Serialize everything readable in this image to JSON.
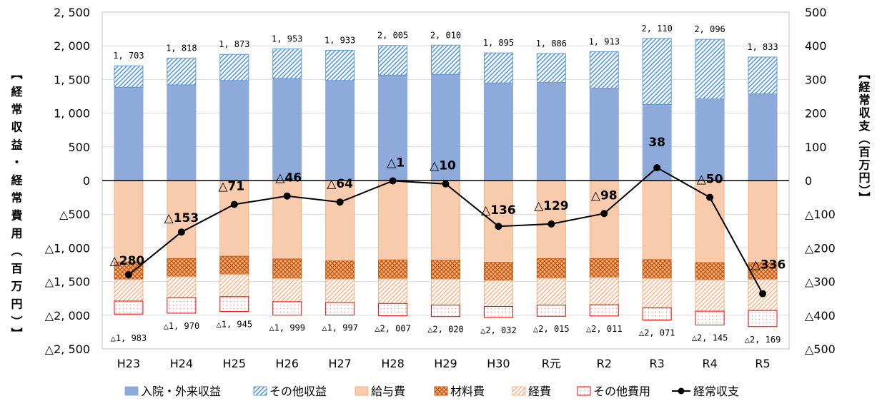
{
  "chart_data": {
    "type": "bar",
    "categories": [
      "H23",
      "H24",
      "H25",
      "H26",
      "H27",
      "H28",
      "H29",
      "H30",
      "R元",
      "R2",
      "R3",
      "R4",
      "R5"
    ],
    "series": [
      {
        "name": "入院・外来収益",
        "stack": "revenue",
        "values": [
          1385,
          1420,
          1485,
          1515,
          1485,
          1565,
          1575,
          1450,
          1455,
          1370,
          1130,
          1210,
          1285
        ]
      },
      {
        "name": "その他収益",
        "stack": "revenue",
        "values": [
          318,
          398,
          388,
          438,
          448,
          440,
          435,
          445,
          431,
          543,
          980,
          886,
          548
        ]
      },
      {
        "name": "給与費",
        "stack": "expense",
        "values": [
          -1210,
          -1160,
          -1125,
          -1165,
          -1195,
          -1180,
          -1185,
          -1215,
          -1160,
          -1160,
          -1175,
          -1220,
          -1220
        ]
      },
      {
        "name": "材料費",
        "stack": "expense",
        "values": [
          -260,
          -270,
          -270,
          -290,
          -270,
          -280,
          -280,
          -270,
          -290,
          -280,
          -280,
          -255,
          -250
        ]
      },
      {
        "name": "経費",
        "stack": "expense",
        "values": [
          -320,
          -310,
          -330,
          -345,
          -345,
          -365,
          -385,
          -385,
          -400,
          -405,
          -435,
          -465,
          -460
        ]
      },
      {
        "name": "その他費用",
        "stack": "expense",
        "values": [
          -193,
          -230,
          -220,
          -199,
          -187,
          -182,
          -170,
          -162,
          -165,
          -166,
          -181,
          -205,
          -239
        ]
      },
      {
        "name": "経常収支",
        "type": "line",
        "axis": "right",
        "values": [
          -280,
          -153,
          -71,
          -46,
          -64,
          -1,
          -10,
          -136,
          -129,
          -98,
          38,
          -50,
          -336
        ]
      }
    ],
    "revenue_totals": [
      "1, 703",
      "1, 818",
      "1, 873",
      "1, 953",
      "1, 933",
      "2, 005",
      "2, 010",
      "1, 895",
      "1, 886",
      "1, 913",
      "2, 110",
      "2, 096",
      "1, 833"
    ],
    "expense_totals": [
      "△1, 983",
      "△1, 970",
      "△1, 945",
      "△1, 999",
      "△1, 997",
      "△2, 007",
      "△2, 020",
      "△2, 032",
      "△2, 015",
      "△2, 011",
      "△2, 071",
      "△2, 145",
      "△2, 169"
    ],
    "balance_labels": [
      "△280",
      "△153",
      "△71",
      "△46",
      "△64",
      "△1",
      "△10",
      "△136",
      "△129",
      "△98",
      "38",
      "△50",
      "△336"
    ],
    "left_axis": {
      "label": "【経常収益・経常費用（百万円）】",
      "ylim": [
        -2500,
        2500
      ],
      "ticks": [
        2500,
        2000,
        1500,
        1000,
        500,
        0,
        -500,
        -1000,
        -1500,
        -2000,
        -2500
      ],
      "tick_labels": [
        "2, 500",
        "2, 000",
        "1, 500",
        "1, 000",
        "500",
        "0",
        "△500",
        "△1, 000",
        "△1, 500",
        "△2, 000",
        "△2, 500"
      ]
    },
    "right_axis": {
      "label": "【経常収支（百万円）】",
      "ylim": [
        -500,
        500
      ],
      "ticks": [
        500,
        400,
        300,
        200,
        100,
        0,
        -100,
        -200,
        -300,
        -400,
        -500
      ],
      "tick_labels": [
        "500",
        "400",
        "300",
        "200",
        "100",
        "0",
        "△100",
        "△200",
        "△300",
        "△400",
        "△500"
      ]
    },
    "grid": true,
    "legend_position": "bottom",
    "colors": {
      "入院・外来収益": "#8eaadb",
      "その他収益": "#9dc3e6",
      "給与費": "#f8cbad",
      "材料費": "#c55a11",
      "経費": "#f4b183",
      "その他費用": "#ff0000",
      "経常収支": "#000000"
    }
  }
}
